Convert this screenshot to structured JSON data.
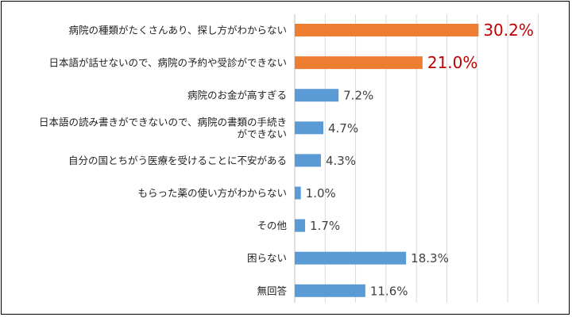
{
  "chart_data": {
    "type": "bar",
    "orientation": "horizontal",
    "title": "",
    "xlabel": "",
    "ylabel": "",
    "xlim": [
      0,
      40
    ],
    "grid": true,
    "legend": "none",
    "categories": [
      [
        "病院の種類がたくさんあり、探し方がわからない"
      ],
      [
        "日本語が話せないので、病院の予約や受診ができない"
      ],
      [
        "病院のお金が高すぎる"
      ],
      [
        "日本語の読み書きができないので、病院の書類の手続き",
        "ができない"
      ],
      [
        "自分の国とちがう医療を受けることに不安がある"
      ],
      [
        "もらった薬の使い方がわからない"
      ],
      [
        "その他"
      ],
      [
        "困らない"
      ],
      [
        "無回答"
      ]
    ],
    "values": [
      30.2,
      21.0,
      7.2,
      4.7,
      4.3,
      1.0,
      1.7,
      18.3,
      11.6
    ],
    "value_labels": [
      "30.2%",
      "21.0%",
      "7.2%",
      "4.7%",
      "4.3%",
      "1.0%",
      "1.7%",
      "18.3%",
      "11.6%"
    ],
    "highlighted": [
      true,
      true,
      false,
      false,
      false,
      false,
      false,
      false,
      false
    ],
    "colors": {
      "highlight_bar": "#ED7D31",
      "normal_bar": "#5B9BD5",
      "highlight_label": "#C00000",
      "normal_label": "#404040",
      "grid": "#D9D9D9"
    }
  }
}
